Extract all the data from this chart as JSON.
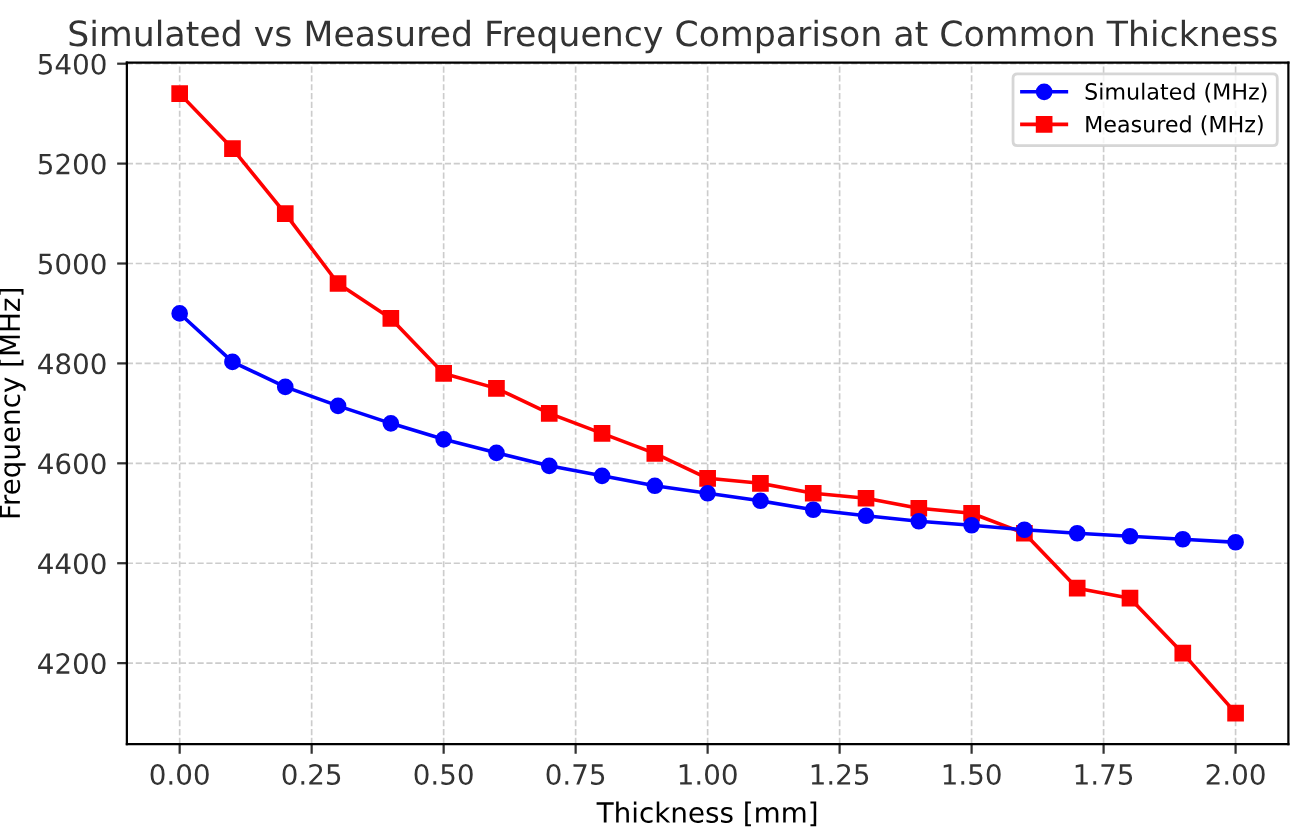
{
  "chart_data": {
    "type": "line",
    "title": "Simulated vs Measured Frequency Comparison at Common Thickness",
    "xlabel": "Thickness [mm]",
    "ylabel": "Frequency [MHz]",
    "x": [
      0.0,
      0.1,
      0.2,
      0.3,
      0.4,
      0.5,
      0.6,
      0.7,
      0.8,
      0.9,
      1.0,
      1.1,
      1.2,
      1.3,
      1.4,
      1.5,
      1.6,
      1.7,
      1.8,
      1.9,
      2.0
    ],
    "series": [
      {
        "name": "Simulated (MHz)",
        "color": "#0000ff",
        "marker": "circle",
        "values": [
          4900,
          4803,
          4753,
          4715,
          4680,
          4648,
          4621,
          4595,
          4575,
          4555,
          4540,
          4525,
          4507,
          4495,
          4484,
          4476,
          4467,
          4460,
          4454,
          4448,
          4442
        ]
      },
      {
        "name": "Measured (MHz)",
        "color": "#ff0000",
        "marker": "square",
        "values": [
          5340,
          5230,
          5100,
          4960,
          4890,
          4780,
          4750,
          4700,
          4660,
          4620,
          4570,
          4560,
          4540,
          4530,
          4510,
          4500,
          4460,
          4350,
          4330,
          4220,
          4100
        ]
      }
    ],
    "xlim": [
      -0.1,
      2.1
    ],
    "ylim": [
      4038,
      5402
    ],
    "xticks": [
      {
        "value": 0,
        "label": "0.00"
      },
      {
        "value": 0.25,
        "label": "0.25"
      },
      {
        "value": 0.5,
        "label": "0.50"
      },
      {
        "value": 0.75,
        "label": "0.75"
      },
      {
        "value": 1.0,
        "label": "1.00"
      },
      {
        "value": 1.25,
        "label": "1.25"
      },
      {
        "value": 1.5,
        "label": "1.50"
      },
      {
        "value": 1.75,
        "label": "1.75"
      },
      {
        "value": 2.0,
        "label": "2.00"
      }
    ],
    "yticks": [
      4200,
      4400,
      4600,
      4800,
      5000,
      5200,
      5400
    ],
    "grid": true,
    "legend": "top right",
    "line_style": "solid"
  }
}
